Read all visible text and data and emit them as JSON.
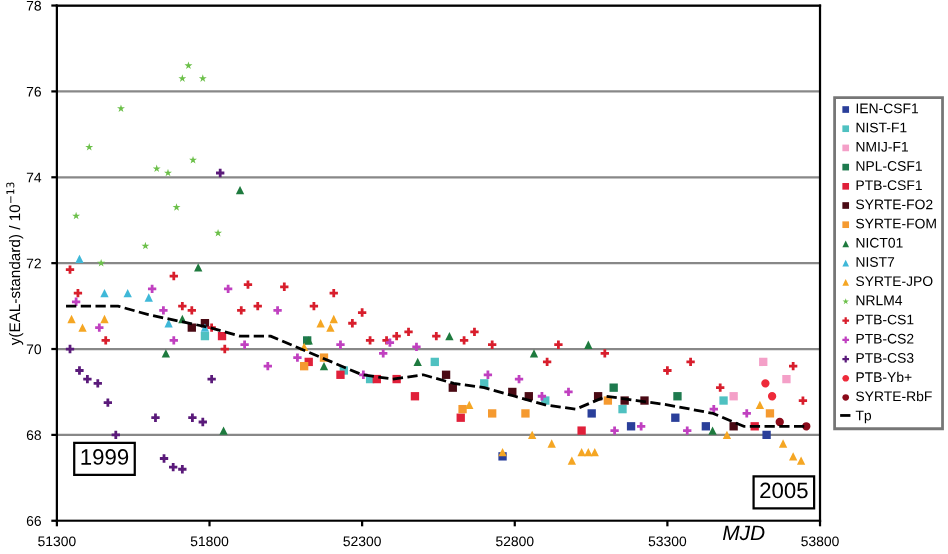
{
  "chart_data": {
    "type": "scatter",
    "xlabel": "MJD",
    "ylabel": "y(EAL-standard) / 10$^{−13}$",
    "xlim": [
      51300,
      53800
    ],
    "xticks": [
      51300,
      51800,
      52300,
      52800,
      53300,
      53800
    ],
    "ylim": [
      66,
      78
    ],
    "yticks": [
      66,
      68,
      70,
      72,
      74,
      76,
      78
    ],
    "grid": "y",
    "legend": "right",
    "annotations": [
      "1999",
      "2005"
    ],
    "series": [
      {
        "name": "IEN-CSF1",
        "color": "#2a3f9a",
        "marker": "square",
        "x": [
          52760,
          53052,
          53181,
          53326,
          53426,
          53625
        ],
        "values": [
          67.5,
          68.5,
          68.2,
          68.4,
          68.2,
          68.0
        ]
      },
      {
        "name": "NIST-F1",
        "color": "#4fc1c1",
        "marker": "square",
        "x": [
          51785,
          52240,
          52326,
          52538,
          52700,
          52900,
          53153,
          53484
        ],
        "values": [
          70.3,
          69.5,
          69.3,
          69.7,
          69.2,
          68.8,
          68.6,
          68.8
        ]
      },
      {
        "name": "NMIJ-F1",
        "color": "#f4a0c8",
        "marker": "square",
        "x": [
          53517,
          53614,
          53690
        ],
        "values": [
          68.9,
          69.7,
          69.3
        ]
      },
      {
        "name": "NPL-CSF1",
        "color": "#1e7a4e",
        "marker": "square",
        "x": [
          52120,
          53124,
          53333
        ],
        "values": [
          70.2,
          69.1,
          68.9
        ]
      },
      {
        "name": "PTB-CSF1",
        "color": "#e0203a",
        "marker": "square",
        "x": [
          51841,
          52125,
          52229,
          52348,
          52413,
          52473,
          52623,
          53019,
          53586
        ],
        "values": [
          70.3,
          69.7,
          69.4,
          69.3,
          69.3,
          68.9,
          68.4,
          68.1,
          68.2
        ]
      },
      {
        "name": "SYRTE-FO2",
        "color": "#4a0a14",
        "marker": "square",
        "x": [
          51742,
          51785,
          52575,
          52597,
          52792,
          52846,
          53073,
          53160,
          53225,
          53517
        ],
        "values": [
          70.5,
          70.6,
          69.4,
          69.1,
          69.0,
          68.9,
          68.9,
          68.8,
          68.8,
          68.2
        ]
      },
      {
        "name": "SYRTE-FOM",
        "color": "#f59a30",
        "marker": "square",
        "x": [
          52110,
          52175,
          52629,
          52726,
          52835,
          53105,
          53636
        ],
        "values": [
          69.6,
          69.8,
          68.6,
          68.5,
          68.5,
          68.8,
          68.5
        ]
      },
      {
        "name": "NICT01",
        "color": "#1e7a3e",
        "marker": "triangle",
        "x": [
          51657,
          51711,
          51763,
          51846,
          51900,
          52125,
          52175,
          52482,
          52586,
          52863,
          53041,
          53448
        ],
        "values": [
          69.9,
          70.7,
          71.9,
          68.1,
          73.7,
          70.2,
          69.6,
          69.7,
          70.3,
          69.9,
          70.1,
          68.1
        ]
      },
      {
        "name": "NIST7",
        "color": "#3fb8d8",
        "marker": "triangle",
        "x": [
          51374,
          51456,
          51532,
          51601,
          51666,
          51785
        ],
        "values": [
          72.1,
          71.3,
          71.3,
          71.2,
          70.6,
          70.5
        ]
      },
      {
        "name": "SYRTE-JPO",
        "color": "#f5a623",
        "marker": "triangle",
        "x": [
          51348,
          51384,
          51456,
          52110,
          52164,
          52196,
          52207,
          52651,
          52760,
          52857,
          52921,
          52987,
          53019,
          53041,
          53062,
          53495,
          53603,
          53679,
          53712,
          53738
        ],
        "values": [
          70.7,
          70.5,
          70.7,
          70.05,
          70.6,
          70.5,
          70.7,
          68.7,
          67.6,
          68.0,
          67.8,
          67.4,
          67.6,
          67.6,
          67.6,
          68.0,
          68.7,
          67.8,
          67.5,
          67.4
        ]
      },
      {
        "name": "NRLM4",
        "color": "#6cc04a",
        "marker": "star",
        "x": [
          51363,
          51406,
          51445,
          51510,
          51590,
          51627,
          51664,
          51692,
          51711,
          51731,
          51746,
          51778,
          51828
        ],
        "values": [
          73.1,
          74.7,
          72.0,
          75.6,
          72.4,
          74.2,
          74.1,
          73.3,
          76.3,
          76.6,
          74.4,
          76.3,
          72.7
        ]
      },
      {
        "name": "PTB-CS1",
        "color": "#d81e2c",
        "marker": "cross",
        "x": [
          51343,
          51369,
          51460,
          51683,
          51711,
          51742,
          51807,
          51850,
          51904,
          51926,
          51958,
          52045,
          52142,
          52207,
          52268,
          52300,
          52326,
          52380,
          52413,
          52452,
          52543,
          52634,
          52668,
          52726,
          52906,
          52943,
          53095,
          53300,
          53376,
          53473,
          53712,
          53744
        ],
        "values": [
          71.85,
          71.3,
          70.2,
          71.7,
          71.0,
          70.9,
          70.5,
          70.0,
          70.9,
          71.5,
          71.0,
          71.45,
          71.0,
          71.3,
          70.6,
          70.85,
          70.2,
          70.2,
          70.3,
          70.4,
          70.3,
          70.2,
          70.4,
          70.1,
          69.7,
          70.1,
          69.9,
          69.5,
          69.7,
          69.1,
          69.6,
          68.8
        ]
      },
      {
        "name": "PTB-CS2",
        "color": "#c040c0",
        "marker": "cross",
        "x": [
          51363,
          51439,
          51612,
          51649,
          51683,
          51861,
          51915,
          51991,
          52023,
          52088,
          52229,
          52304,
          52369,
          52391,
          52478,
          52712,
          52814,
          52889,
          52976,
          53127,
          53214,
          53365,
          53452,
          53560
        ],
        "values": [
          71.1,
          70.5,
          71.4,
          70.9,
          70.2,
          71.4,
          70.1,
          69.6,
          70.9,
          69.8,
          70.1,
          69.4,
          69.9,
          70.15,
          70.05,
          69.4,
          69.3,
          68.9,
          69.0,
          68.1,
          68.2,
          68.1,
          68.6,
          68.5
        ]
      },
      {
        "name": "PTB-CS3",
        "color": "#5a1a7a",
        "marker": "cross",
        "x": [
          51343,
          51374,
          51400,
          51434,
          51467,
          51493,
          51623,
          51651,
          51681,
          51711,
          51744,
          51778,
          51807,
          51835
        ],
        "values": [
          70.0,
          69.5,
          69.3,
          69.2,
          68.75,
          68.0,
          68.4,
          67.45,
          67.25,
          67.2,
          68.4,
          68.3,
          69.3,
          74.1
        ]
      },
      {
        "name": "PTB-Yb+",
        "color": "#ee2a3a",
        "marker": "circle",
        "x": [
          53621,
          53643
        ],
        "values": [
          69.2,
          68.9
        ]
      },
      {
        "name": "SYRTE-RbF",
        "color": "#8b0a1a",
        "marker": "circle",
        "x": [
          53668,
          53755
        ],
        "values": [
          68.3,
          68.2
        ]
      },
      {
        "name": "Tp",
        "type": "line",
        "color": "#000000",
        "marker": "none",
        "line_style": "dashed",
        "x": [
          51330,
          51500,
          51600,
          51800,
          51900,
          52000,
          52100,
          52200,
          52300,
          52400,
          52500,
          52600,
          52700,
          52800,
          52900,
          53000,
          53100,
          53200,
          53300,
          53450,
          53550,
          53750
        ],
        "values": [
          71.0,
          71.0,
          70.8,
          70.5,
          70.3,
          70.3,
          70.0,
          69.7,
          69.4,
          69.3,
          69.4,
          69.2,
          69.1,
          68.9,
          68.7,
          68.6,
          68.9,
          68.8,
          68.7,
          68.5,
          68.2,
          68.2
        ]
      }
    ]
  }
}
